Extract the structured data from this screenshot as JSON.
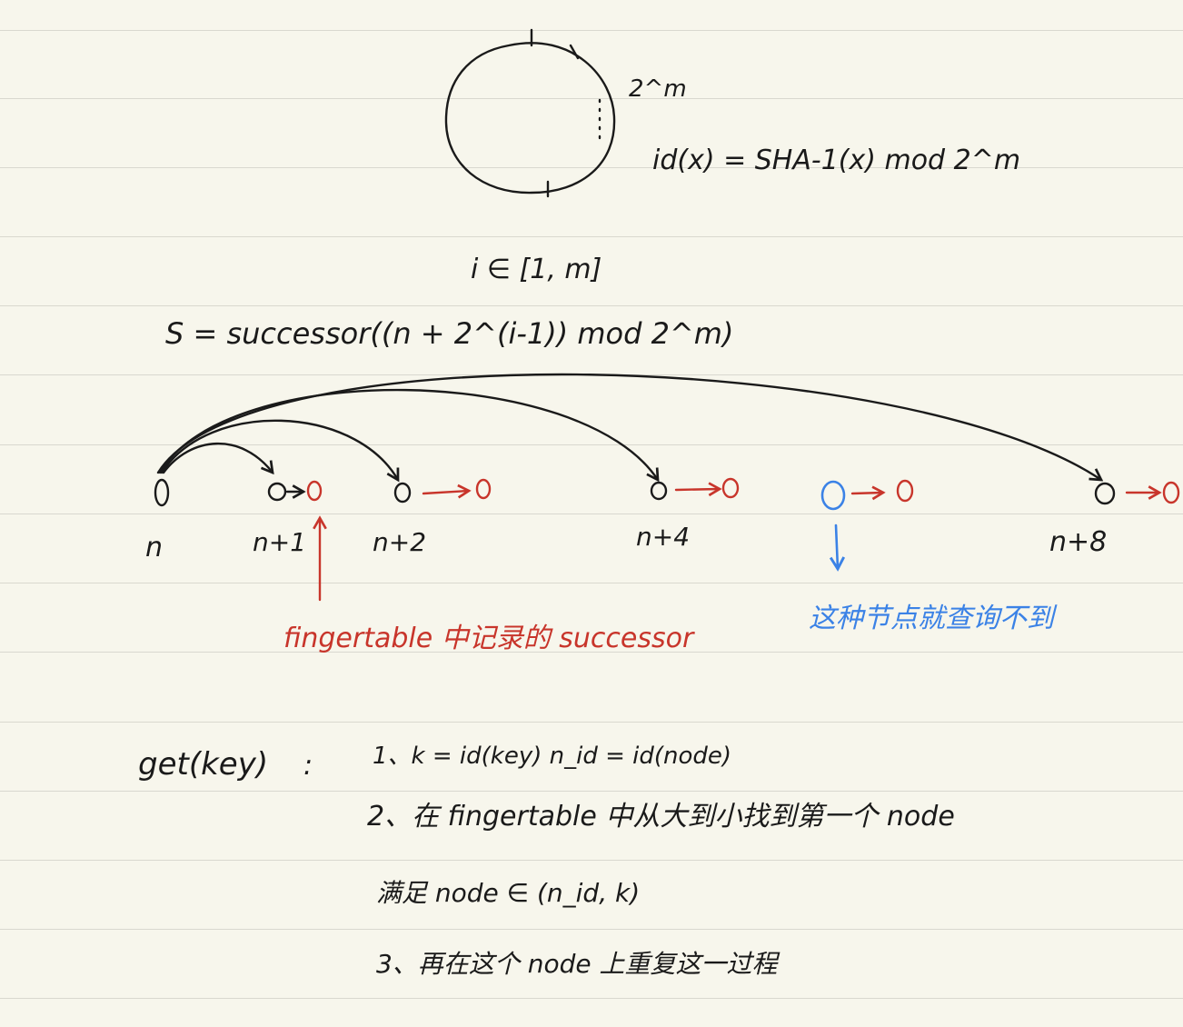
{
  "ring": {
    "size_label": "2^m"
  },
  "hash_formula": "id(x) = SHA-1(x) mod 2^m",
  "index_range": "i ∈ [1, m]",
  "successor_formula": "S = successor((n + 2^(i-1)) mod 2^m)",
  "nodes": [
    {
      "label": "n"
    },
    {
      "label": "n+1"
    },
    {
      "label": "n+2"
    },
    {
      "label": "n+4"
    },
    {
      "label": "n+8"
    }
  ],
  "annotations": {
    "finger_successor": "fingertable 中记录的 successor",
    "unreachable": "这种节点就查询不到"
  },
  "algorithm": {
    "name": "get(key)",
    "steps": [
      "1、k = id(key)   n_id = id(node)",
      "2、在 fingertable 中从大到小找到第一个 node",
      "满足 node ∈ (n_id, k)",
      "3、再在这个 node 上重复这一过程"
    ]
  },
  "colors": {
    "ink": "#1a1a1a",
    "red": "#c8352b",
    "blue": "#3b82e6",
    "paper": "#f7f6ec",
    "rule": "#d9d8cf"
  }
}
